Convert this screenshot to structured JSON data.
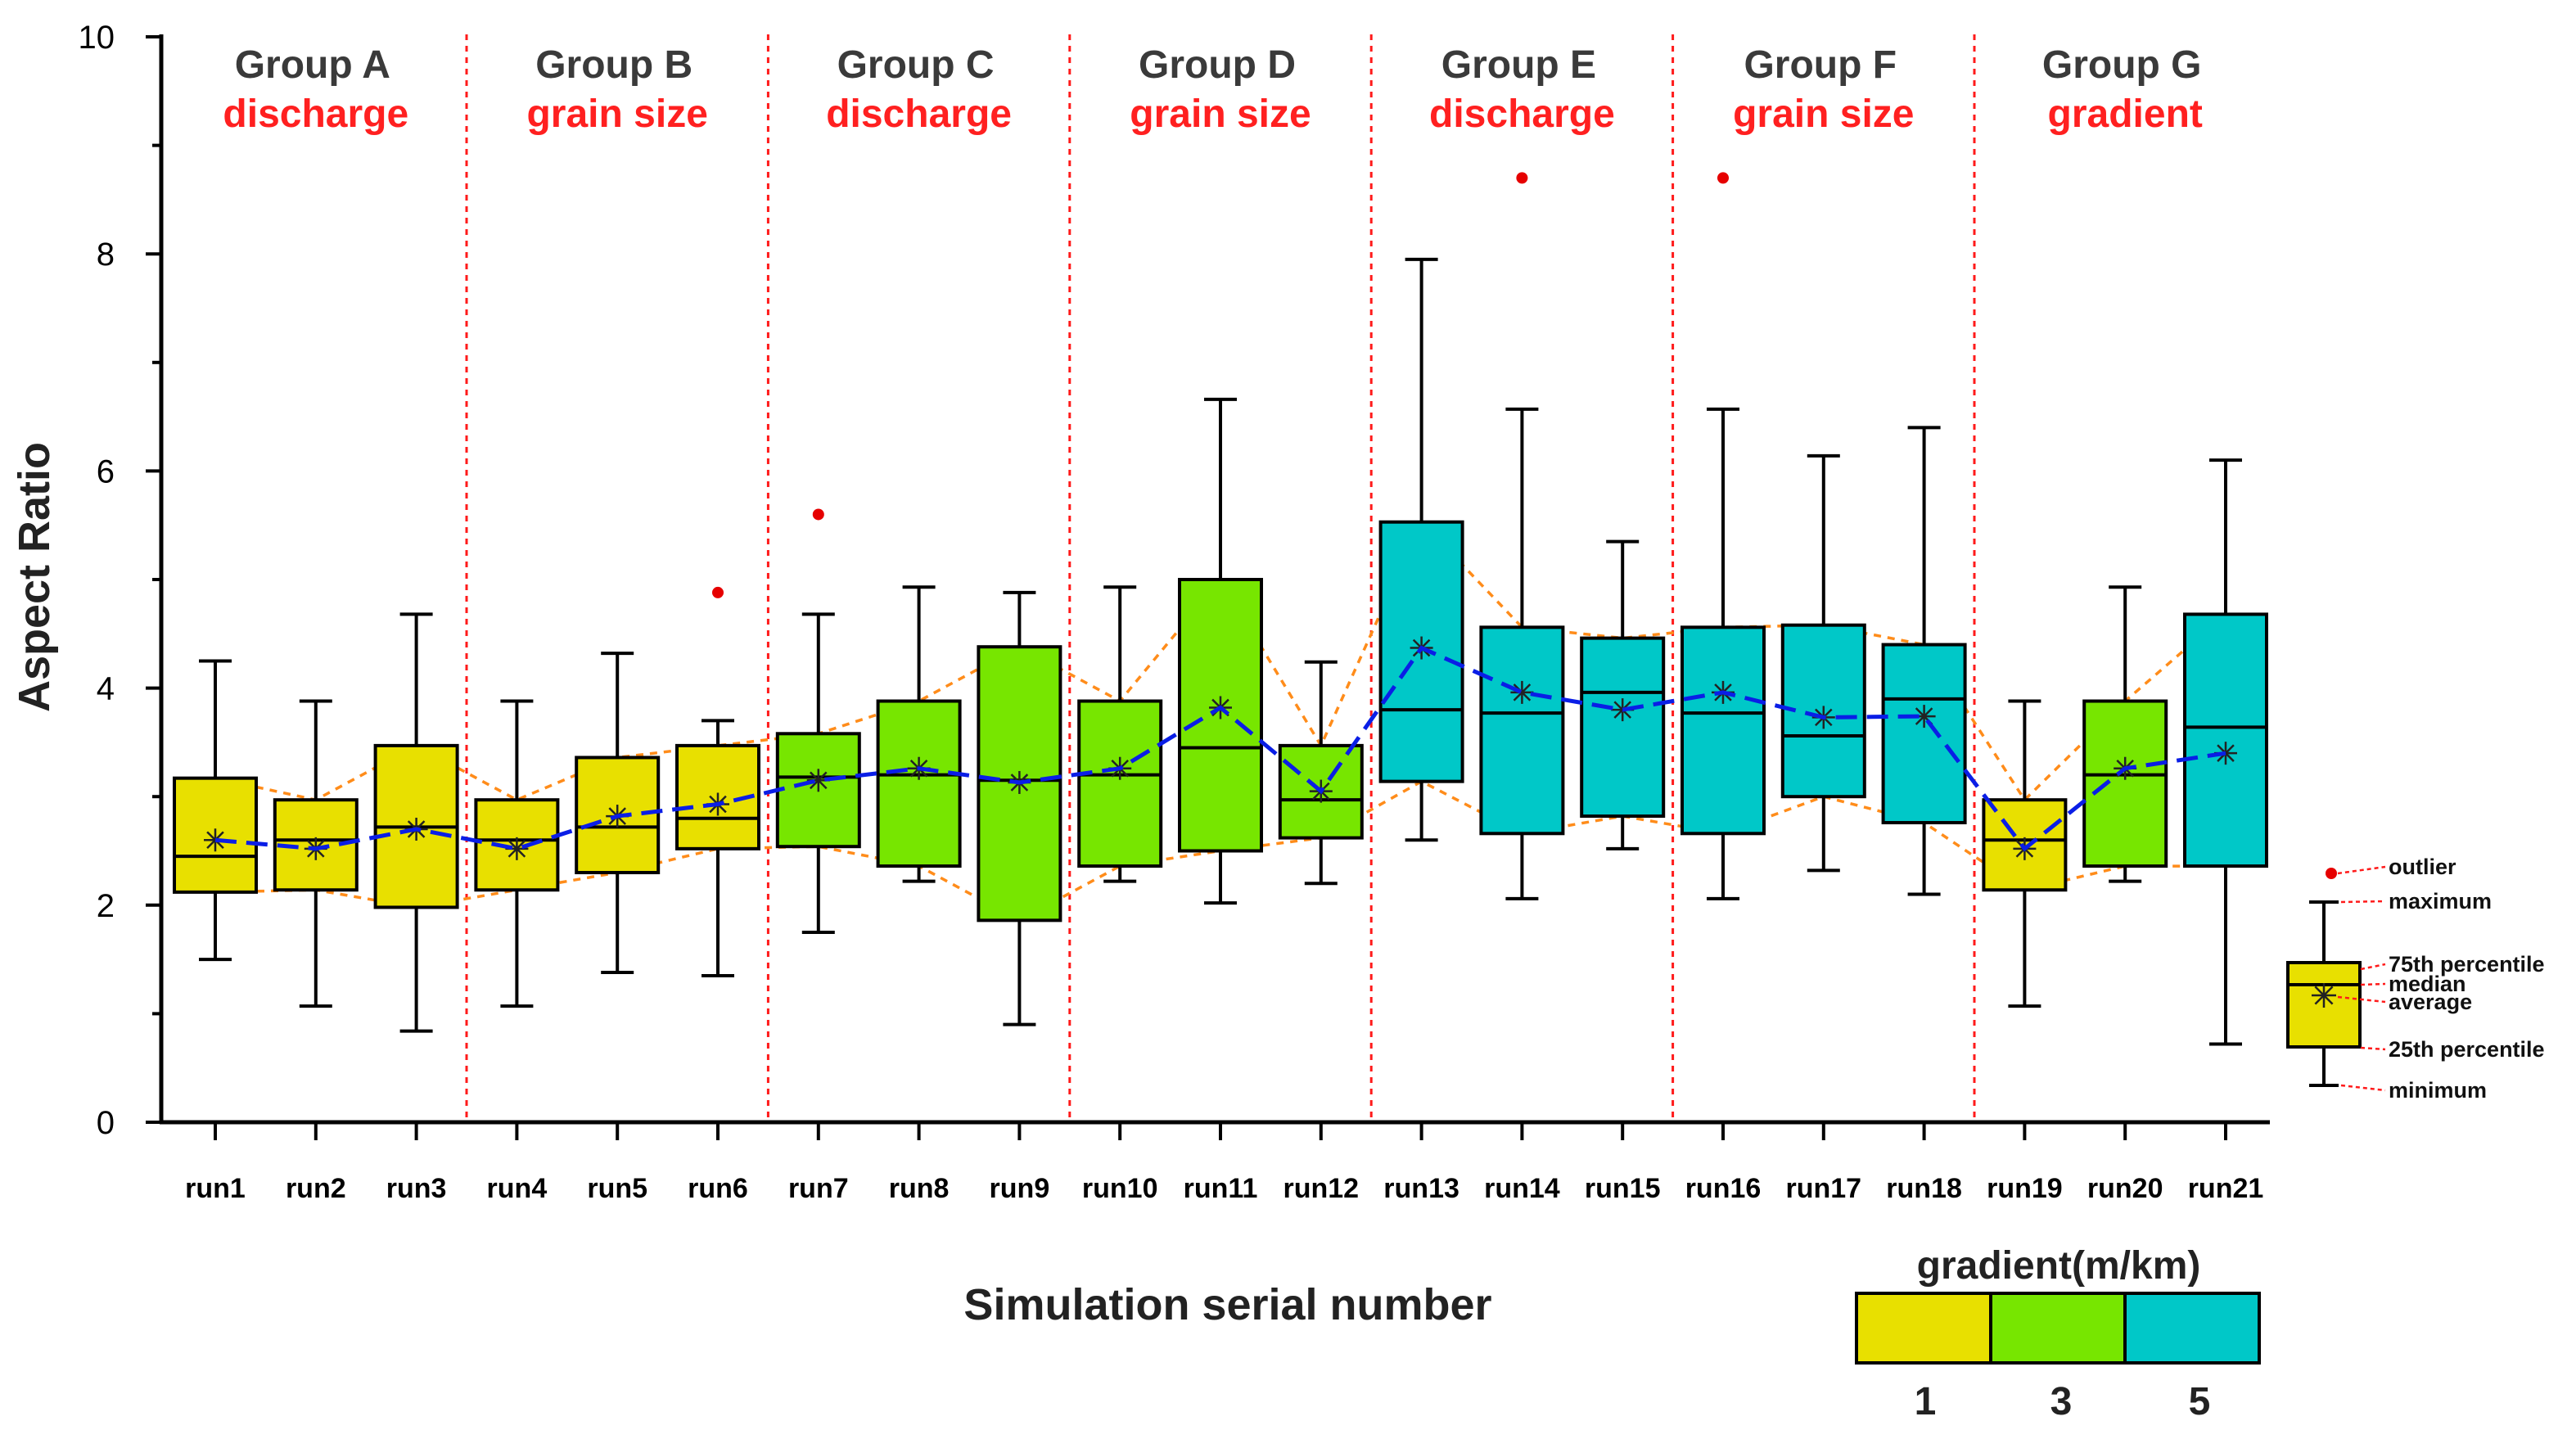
{
  "chart_data": {
    "type": "box",
    "title": "",
    "xlabel": "Simulation serial number",
    "ylabel": "Aspect Ratio",
    "ylim": [
      0,
      10
    ],
    "yticks": [
      0,
      2,
      4,
      6,
      8,
      10
    ],
    "grid": false,
    "categories": [
      "run1",
      "run2",
      "run3",
      "run4",
      "run5",
      "run6",
      "run7",
      "run8",
      "run9",
      "run10",
      "run11",
      "run12",
      "run13",
      "run14",
      "run15",
      "run16",
      "run17",
      "run18",
      "run19",
      "run20",
      "run21"
    ],
    "groups": [
      {
        "title": "Group A",
        "subtitle": "discharge",
        "runs": [
          0,
          2
        ]
      },
      {
        "title": "Group B",
        "subtitle": "grain size",
        "runs": [
          3,
          5
        ]
      },
      {
        "title": "Group C",
        "subtitle": "discharge",
        "runs": [
          6,
          8
        ]
      },
      {
        "title": "Group D",
        "subtitle": "grain size",
        "runs": [
          9,
          11
        ]
      },
      {
        "title": "Group E",
        "subtitle": "discharge",
        "runs": [
          12,
          14
        ]
      },
      {
        "title": "Group F",
        "subtitle": "grain size",
        "runs": [
          15,
          17
        ]
      },
      {
        "title": "Group G",
        "subtitle": "gradient",
        "runs": [
          18,
          20
        ]
      }
    ],
    "boxes": [
      {
        "min": 1.5,
        "q1": 2.12,
        "median": 2.45,
        "q3": 3.17,
        "max": 4.25,
        "mean": 2.6,
        "gradient": 1,
        "outliers": []
      },
      {
        "min": 1.07,
        "q1": 2.14,
        "median": 2.6,
        "q3": 2.97,
        "max": 3.88,
        "mean": 2.52,
        "gradient": 1,
        "outliers": []
      },
      {
        "min": 0.84,
        "q1": 1.98,
        "median": 2.72,
        "q3": 3.47,
        "max": 4.68,
        "mean": 2.7,
        "gradient": 1,
        "outliers": []
      },
      {
        "min": 1.07,
        "q1": 2.14,
        "median": 2.6,
        "q3": 2.97,
        "max": 3.88,
        "mean": 2.52,
        "gradient": 1,
        "outliers": []
      },
      {
        "min": 1.38,
        "q1": 2.3,
        "median": 2.72,
        "q3": 3.36,
        "max": 4.32,
        "mean": 2.82,
        "gradient": 1,
        "outliers": []
      },
      {
        "min": 1.35,
        "q1": 2.52,
        "median": 2.8,
        "q3": 3.47,
        "max": 3.7,
        "mean": 2.93,
        "gradient": 1,
        "outliers": [
          4.88
        ]
      },
      {
        "min": 1.75,
        "q1": 2.54,
        "median": 3.18,
        "q3": 3.58,
        "max": 4.68,
        "mean": 3.15,
        "gradient": 3,
        "outliers": [
          5.6
        ]
      },
      {
        "min": 2.22,
        "q1": 2.36,
        "median": 3.2,
        "q3": 3.88,
        "max": 4.93,
        "mean": 3.26,
        "gradient": 3,
        "outliers": []
      },
      {
        "min": 0.9,
        "q1": 1.86,
        "median": 3.15,
        "q3": 4.38,
        "max": 4.88,
        "mean": 3.13,
        "gradient": 3,
        "outliers": []
      },
      {
        "min": 2.22,
        "q1": 2.36,
        "median": 3.2,
        "q3": 3.88,
        "max": 4.93,
        "mean": 3.26,
        "gradient": 3,
        "outliers": []
      },
      {
        "min": 2.02,
        "q1": 2.5,
        "median": 3.45,
        "q3": 5.0,
        "max": 6.66,
        "mean": 3.82,
        "gradient": 3,
        "outliers": []
      },
      {
        "min": 2.2,
        "q1": 2.62,
        "median": 2.97,
        "q3": 3.47,
        "max": 4.24,
        "mean": 3.05,
        "gradient": 3,
        "outliers": []
      },
      {
        "min": 2.6,
        "q1": 3.14,
        "median": 3.8,
        "q3": 5.53,
        "max": 7.95,
        "mean": 4.37,
        "gradient": 5,
        "outliers": []
      },
      {
        "min": 2.06,
        "q1": 2.66,
        "median": 3.77,
        "q3": 4.56,
        "max": 6.57,
        "mean": 3.96,
        "gradient": 5,
        "outliers": [
          8.7
        ]
      },
      {
        "min": 2.52,
        "q1": 2.82,
        "median": 3.96,
        "q3": 4.46,
        "max": 5.35,
        "mean": 3.8,
        "gradient": 5,
        "outliers": []
      },
      {
        "min": 2.06,
        "q1": 2.66,
        "median": 3.77,
        "q3": 4.56,
        "max": 6.57,
        "mean": 3.96,
        "gradient": 5,
        "outliers": [
          8.7
        ]
      },
      {
        "min": 2.32,
        "q1": 3.0,
        "median": 3.56,
        "q3": 4.58,
        "max": 6.14,
        "mean": 3.73,
        "gradient": 5,
        "outliers": []
      },
      {
        "min": 2.1,
        "q1": 2.76,
        "median": 3.9,
        "q3": 4.4,
        "max": 6.4,
        "mean": 3.74,
        "gradient": 5,
        "outliers": []
      },
      {
        "min": 1.07,
        "q1": 2.14,
        "median": 2.6,
        "q3": 2.97,
        "max": 3.88,
        "mean": 2.52,
        "gradient": 1,
        "outliers": []
      },
      {
        "min": 2.22,
        "q1": 2.36,
        "median": 3.2,
        "q3": 3.88,
        "max": 4.93,
        "mean": 3.26,
        "gradient": 3,
        "outliers": []
      },
      {
        "min": 0.72,
        "q1": 2.36,
        "median": 3.64,
        "q3": 4.68,
        "max": 6.1,
        "mean": 3.4,
        "gradient": 5,
        "outliers": []
      }
    ],
    "box_legend": {
      "outlier": "outlier",
      "maximum": "maximum",
      "q3": "75th percentile",
      "median": "median",
      "average": "average",
      "q1": "25th percentile",
      "minimum": "minimum"
    },
    "gradient_legend": {
      "title": "gradient(m/km)",
      "entries": [
        {
          "label": "1",
          "value": 1,
          "color": "#e8e000"
        },
        {
          "label": "3",
          "value": 3,
          "color": "#77e600"
        },
        {
          "label": "5",
          "value": 5,
          "color": "#00c8c8"
        }
      ]
    },
    "colors": {
      "outlier": "#e60000",
      "divider": "#ff1a1a",
      "envelope": "#ff8c1a",
      "mean_trend": "#0a1ee6",
      "group_subtitle": "#ff2020"
    }
  }
}
